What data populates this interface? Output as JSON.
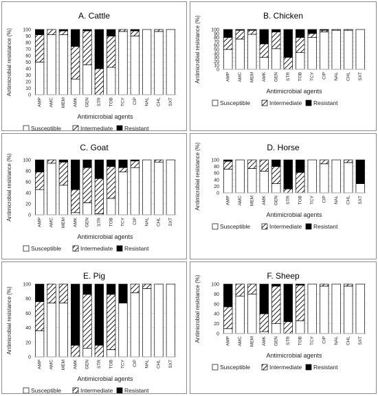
{
  "colors": {
    "susceptible": "#ffffff",
    "intermediate": "hatch",
    "resistant": "#000000",
    "frame": "#8c8c8c",
    "gridline": "#d9d9d9"
  },
  "chart_data": [
    {
      "type": "bar",
      "stacked": true,
      "title": "A. Cattle",
      "xlabel": "Antimicrobial agents",
      "ylabel": "Antimicrobial resistance (%)",
      "ylim": [
        0,
        100
      ],
      "yticks": [
        "0",
        "10",
        "20",
        "30",
        "40",
        "50",
        "60",
        "70",
        "80",
        "90",
        "100"
      ],
      "categories": [
        "AMP",
        "AMC",
        "MEM",
        "AMK",
        "GEN",
        "STR",
        "TOB",
        "TCY",
        "CIP",
        "NAL",
        "CHL",
        "SXT"
      ],
      "series": [
        {
          "name": "Susceptible",
          "values": [
            50,
            92,
            92,
            24,
            46,
            0,
            42,
            97,
            90,
            100,
            97,
            100
          ]
        },
        {
          "name": "Intermediate",
          "values": [
            42,
            8,
            6,
            50,
            52,
            40,
            48,
            3,
            8,
            0,
            3,
            0
          ]
        },
        {
          "name": "Resistant",
          "values": [
            8,
            0,
            2,
            26,
            2,
            60,
            10,
            0,
            2,
            0,
            0,
            0
          ]
        }
      ],
      "legend": "bottom"
    },
    {
      "type": "bar",
      "stacked": true,
      "title": "B. Chicken",
      "xlabel": "Antimicrobial agents",
      "ylabel": "Antimicrobial resistance (%)",
      "ylim": [
        0,
        100
      ],
      "yticks": [
        "0",
        "10",
        "20",
        "30",
        "40",
        "50",
        "60",
        "70",
        "80",
        "90",
        "100"
      ],
      "categories": [
        "AMP",
        "AMC",
        "MEM",
        "AMK",
        "GEN",
        "STR",
        "TOB",
        "TCY",
        "CIP",
        "NAL",
        "CHL",
        "SXT"
      ],
      "series": [
        {
          "name": "Susceptible",
          "values": [
            50,
            76,
            88,
            30,
            52,
            0,
            42,
            80,
            94,
            98,
            98,
            100
          ]
        },
        {
          "name": "Intermediate",
          "values": [
            30,
            22,
            10,
            34,
            42,
            30,
            38,
            10,
            4,
            2,
            2,
            0
          ]
        },
        {
          "name": "Resistant",
          "values": [
            20,
            2,
            2,
            36,
            6,
            70,
            20,
            10,
            2,
            0,
            0,
            0
          ]
        }
      ],
      "legend": "bottom"
    },
    {
      "type": "bar",
      "stacked": true,
      "title": "C. Goat",
      "xlabel": "Antimicrobial agents",
      "ylabel": "Antimicrobial resistance (%)",
      "ylim": [
        0,
        100
      ],
      "yticks": [
        "0",
        "20",
        "40",
        "60",
        "80",
        "100"
      ],
      "categories": [
        "AMP",
        "AMC",
        "MEM",
        "AMK",
        "GEN",
        "STR",
        "TOB",
        "TCY",
        "CIP",
        "NAL",
        "CHL",
        "SXT"
      ],
      "series": [
        {
          "name": "Susceptible",
          "values": [
            46,
            94,
            54,
            4,
            22,
            2,
            30,
            78,
            86,
            100,
            96,
            100
          ]
        },
        {
          "name": "Intermediate",
          "values": [
            32,
            6,
            42,
            42,
            64,
            64,
            58,
            8,
            12,
            0,
            4,
            0
          ]
        },
        {
          "name": "Resistant",
          "values": [
            22,
            0,
            4,
            54,
            14,
            34,
            12,
            14,
            2,
            0,
            0,
            0
          ]
        }
      ],
      "legend": "bottom"
    },
    {
      "type": "bar",
      "stacked": true,
      "title": "D. Horse",
      "xlabel": "Antimicrobial agents",
      "ylabel": "Antimicrobial resistance (%)",
      "ylim": [
        0,
        100
      ],
      "yticks": [
        "0",
        "20",
        "40",
        "60",
        "80",
        "100"
      ],
      "categories": [
        "AMP",
        "AMC",
        "MEM",
        "AMK",
        "GEN",
        "STR",
        "TOB",
        "TCY",
        "CIP",
        "NAL",
        "CHL",
        "SXT"
      ],
      "series": [
        {
          "name": "Susceptible",
          "values": [
            72,
            100,
            74,
            66,
            28,
            0,
            0,
            100,
            88,
            100,
            92,
            28
          ]
        },
        {
          "name": "Intermediate",
          "values": [
            24,
            0,
            26,
            34,
            52,
            12,
            62,
            0,
            12,
            0,
            8,
            0
          ]
        },
        {
          "name": "Resistant",
          "values": [
            4,
            0,
            0,
            0,
            20,
            88,
            38,
            0,
            0,
            0,
            0,
            72
          ]
        }
      ],
      "legend": "bottom"
    },
    {
      "type": "bar",
      "stacked": true,
      "title": "E. Pig",
      "xlabel": "Antimicrobial agents",
      "ylabel": "Antimicrobial resistance (%)",
      "ylim": [
        0,
        100
      ],
      "yticks": [
        "0",
        "20",
        "40",
        "60",
        "80",
        "100"
      ],
      "categories": [
        "AMP",
        "AMC",
        "MEM",
        "AMK",
        "GEN",
        "STR",
        "TOB",
        "TCY",
        "CIP",
        "NAL",
        "CHL",
        "SXT"
      ],
      "series": [
        {
          "name": "Susceptible",
          "values": [
            36,
            74,
            74,
            0,
            12,
            0,
            10,
            74,
            88,
            94,
            100,
            100
          ]
        },
        {
          "name": "Intermediate",
          "values": [
            40,
            26,
            26,
            16,
            74,
            16,
            76,
            0,
            12,
            6,
            0,
            0
          ]
        },
        {
          "name": "Resistant",
          "values": [
            24,
            0,
            0,
            84,
            14,
            84,
            14,
            26,
            0,
            0,
            0,
            0
          ]
        }
      ],
      "legend": "bottom"
    },
    {
      "type": "bar",
      "stacked": true,
      "title": "F. Sheep",
      "xlabel": "Antimicrobial agents",
      "ylabel": "Antimicrobial resistance (%)",
      "ylim": [
        0,
        100
      ],
      "yticks": [
        "0",
        "20",
        "40",
        "60",
        "80",
        "100"
      ],
      "categories": [
        "AMP",
        "AMC",
        "MEM",
        "AMK",
        "GEN",
        "STR",
        "TOB",
        "TCY",
        "CIP",
        "NAL",
        "CHL",
        "SXT"
      ],
      "series": [
        {
          "name": "Susceptible",
          "values": [
            10,
            76,
            80,
            4,
            20,
            0,
            26,
            100,
            96,
            100,
            96,
            100
          ]
        },
        {
          "name": "Intermediate",
          "values": [
            44,
            24,
            20,
            36,
            76,
            24,
            72,
            0,
            4,
            0,
            4,
            0
          ]
        },
        {
          "name": "Resistant",
          "values": [
            46,
            0,
            0,
            60,
            4,
            76,
            2,
            0,
            0,
            0,
            0,
            0
          ]
        }
      ],
      "legend": "bottom"
    }
  ]
}
